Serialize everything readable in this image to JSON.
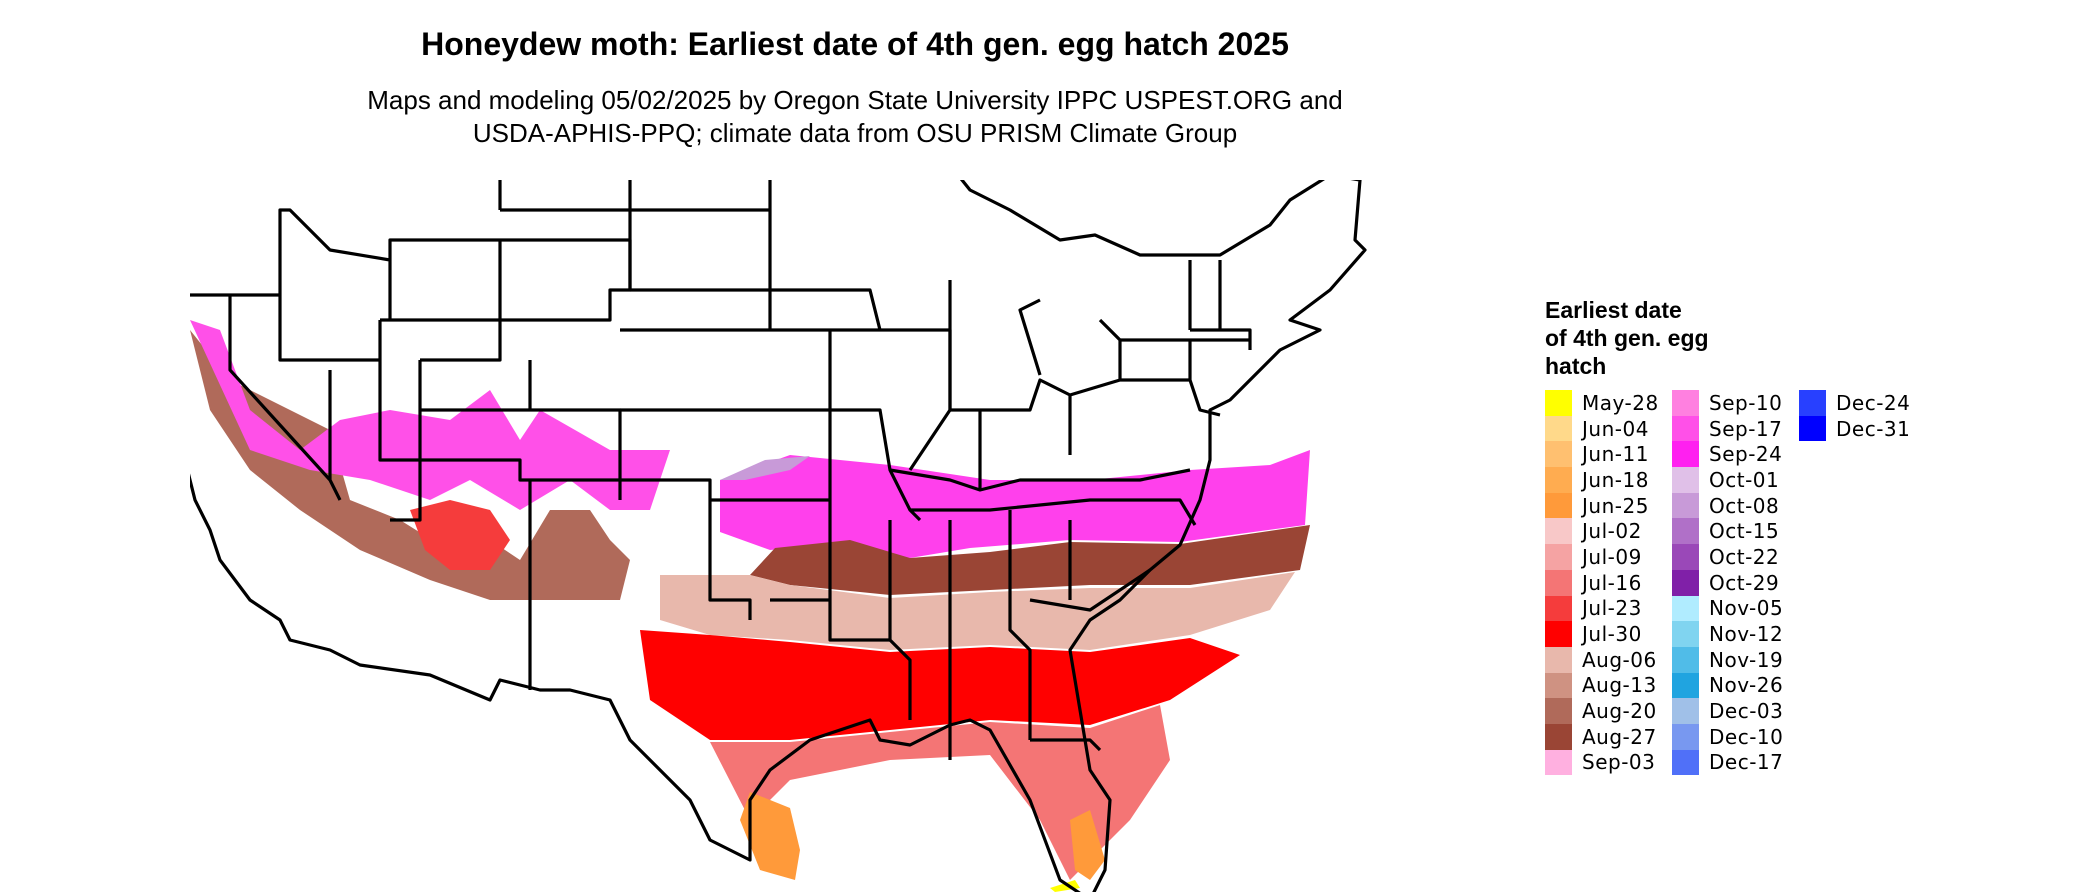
{
  "title": "Honeydew moth: Earliest date of 4th gen. egg hatch 2025",
  "subtitle_line1": "Maps and modeling 05/02/2025 by Oregon State University IPPC USPEST.ORG and",
  "subtitle_line2": "USDA-APHIS-PPQ; climate data from OSU PRISM Climate Group",
  "legend": {
    "title_line1": "Earliest date",
    "title_line2": "of 4th gen. egg",
    "title_line3": "hatch",
    "columns": [
      [
        {
          "label": "May-28",
          "color": "#ffff00"
        },
        {
          "label": "Jun-04",
          "color": "#ffd98a"
        },
        {
          "label": "Jun-11",
          "color": "#ffc070"
        },
        {
          "label": "Jun-18",
          "color": "#ffac50"
        },
        {
          "label": "Jun-25",
          "color": "#ff9a3a"
        },
        {
          "label": "Jul-02",
          "color": "#f8c8c8"
        },
        {
          "label": "Jul-09",
          "color": "#f5a3a3"
        },
        {
          "label": "Jul-16",
          "color": "#f47575"
        },
        {
          "label": "Jul-23",
          "color": "#f53c3c"
        },
        {
          "label": "Jul-30",
          "color": "#ff0000"
        },
        {
          "label": "Aug-06",
          "color": "#e8b8ac"
        },
        {
          "label": "Aug-13",
          "color": "#cf9282"
        },
        {
          "label": "Aug-20",
          "color": "#b06a5a"
        },
        {
          "label": "Aug-27",
          "color": "#9a4535"
        },
        {
          "label": "Sep-03",
          "color": "#ffb0e0"
        }
      ],
      [
        {
          "label": "Sep-10",
          "color": "#ff80e0"
        },
        {
          "label": "Sep-17",
          "color": "#ff50e8"
        },
        {
          "label": "Sep-24",
          "color": "#ff20f0"
        },
        {
          "label": "Oct-01",
          "color": "#e0c0e8"
        },
        {
          "label": "Oct-08",
          "color": "#c89ad8"
        },
        {
          "label": "Oct-15",
          "color": "#b070c8"
        },
        {
          "label": "Oct-22",
          "color": "#9a48b8"
        },
        {
          "label": "Oct-29",
          "color": "#8020a8"
        },
        {
          "label": "Nov-05",
          "color": "#b0ecff"
        },
        {
          "label": "Nov-12",
          "color": "#80d4f0"
        },
        {
          "label": "Nov-19",
          "color": "#50bce8"
        },
        {
          "label": "Nov-26",
          "color": "#20a4e0"
        },
        {
          "label": "Dec-03",
          "color": "#a0c0e8"
        },
        {
          "label": "Dec-10",
          "color": "#7898f0"
        },
        {
          "label": "Dec-17",
          "color": "#5070f8"
        }
      ],
      [
        {
          "label": "Dec-24",
          "color": "#2840ff"
        },
        {
          "label": "Dec-31",
          "color": "#0000ff"
        }
      ]
    ]
  }
}
